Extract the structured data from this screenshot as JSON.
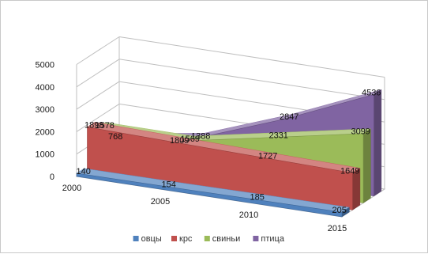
{
  "chart_data": {
    "type": "area",
    "three_d": true,
    "categories": [
      "2000",
      "2005",
      "2010",
      "2015"
    ],
    "ylim": [
      0,
      5000
    ],
    "y_ticks": [
      0,
      1000,
      2000,
      3000,
      4000,
      5000
    ],
    "gridlines": true,
    "legend_position": "bottom",
    "title": "",
    "xlabel": "",
    "ylabel": "",
    "series": [
      {
        "name": "овцы",
        "color": "#4f81bd",
        "values": [
          140,
          154,
          185,
          205
        ],
        "labels": [
          "140",
          "154",
          "185",
          "205"
        ]
      },
      {
        "name": "крс",
        "color": "#c0504d",
        "values": [
          1898,
          1809,
          1727,
          1649
        ],
        "labels": [
          "1898",
          "1809",
          "1727",
          "1649"
        ]
      },
      {
        "name": "свиньи",
        "color": "#9bbb59",
        "values": [
          1578,
          1569,
          2331,
          3099
        ],
        "labels": [
          "1578",
          "1569",
          "2331",
          "3099"
        ]
      },
      {
        "name": "птица",
        "color": "#8064a2",
        "values": [
          768,
          1388,
          2847,
          4536
        ],
        "labels": [
          "768",
          "1388",
          "2847",
          "4536"
        ]
      }
    ]
  }
}
